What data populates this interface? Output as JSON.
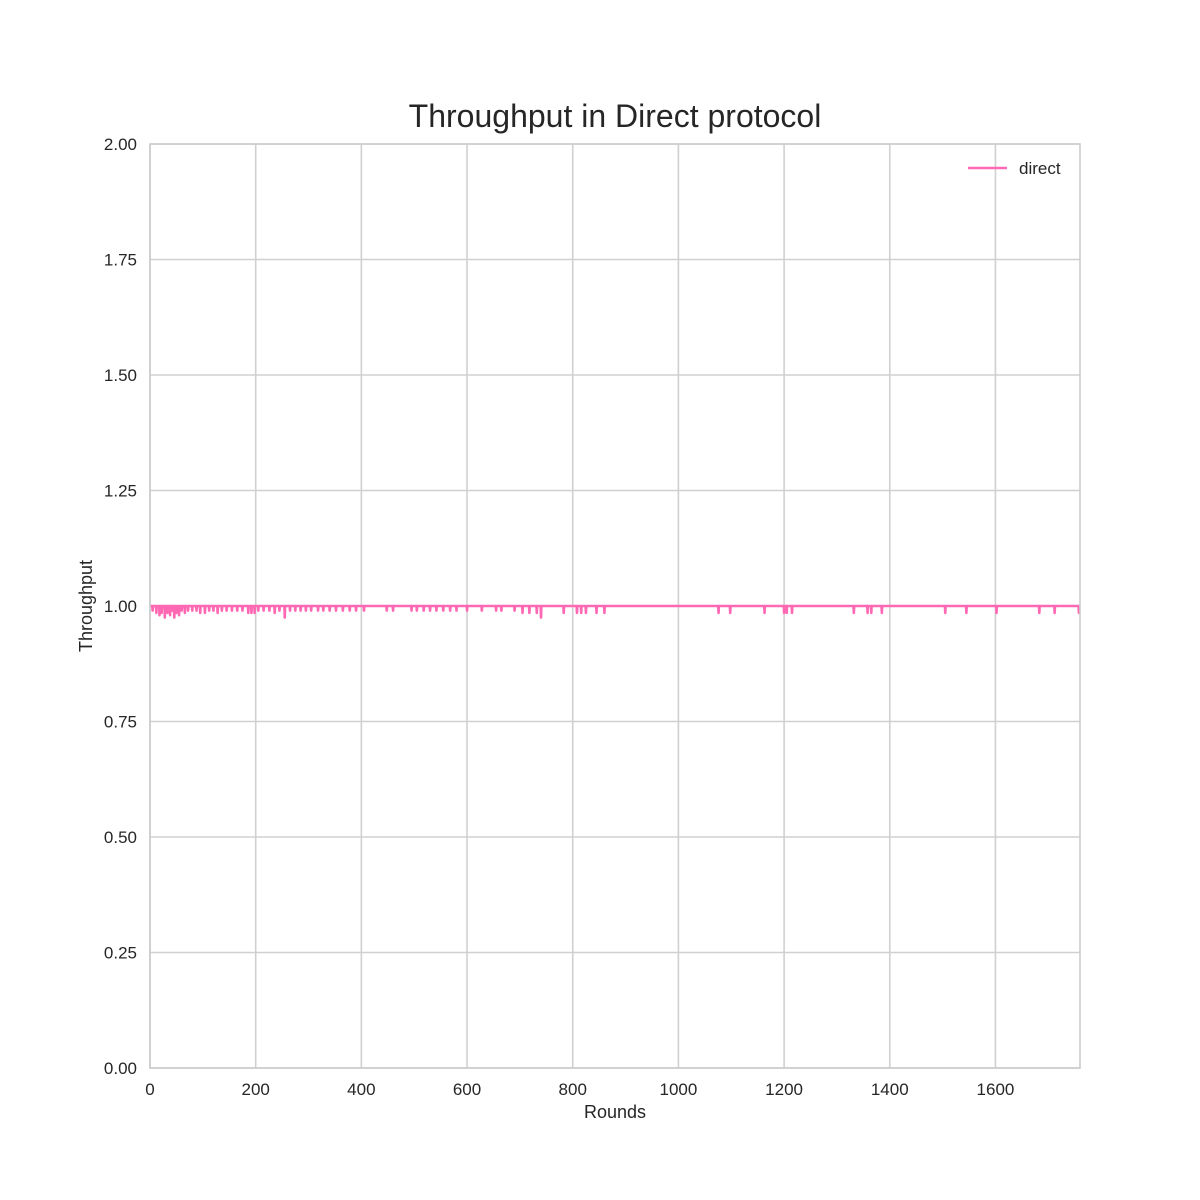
{
  "chart_data": {
    "type": "line",
    "title": "Throughput in Direct protocol",
    "xlabel": "Rounds",
    "ylabel": "Throughput",
    "xlim": [
      0,
      1760
    ],
    "ylim": [
      0,
      2.0
    ],
    "x_ticks": [
      0,
      200,
      400,
      600,
      800,
      1000,
      1200,
      1400,
      1600
    ],
    "x_tick_labels": [
      "0",
      "200",
      "400",
      "600",
      "800",
      "1000",
      "1200",
      "1400",
      "1600"
    ],
    "y_ticks": [
      0,
      0.25,
      0.5,
      0.75,
      1.0,
      1.25,
      1.5,
      1.75,
      2.0
    ],
    "y_tick_labels": [
      "0.00",
      "0.25",
      "0.50",
      "0.75",
      "1.00",
      "1.25",
      "1.50",
      "1.75",
      "2.00"
    ],
    "grid": true,
    "legend_position": "upper right",
    "series": [
      {
        "name": "direct",
        "color": "#ff69b4",
        "baseline": 1.0,
        "dips": [
          [
            5,
            0.99
          ],
          [
            12,
            0.985
          ],
          [
            18,
            0.98
          ],
          [
            22,
            0.985
          ],
          [
            28,
            0.975
          ],
          [
            33,
            0.985
          ],
          [
            38,
            0.98
          ],
          [
            42,
            0.99
          ],
          [
            46,
            0.975
          ],
          [
            50,
            0.985
          ],
          [
            55,
            0.98
          ],
          [
            60,
            0.99
          ],
          [
            66,
            0.985
          ],
          [
            72,
            0.99
          ],
          [
            80,
            0.99
          ],
          [
            88,
            0.99
          ],
          [
            95,
            0.985
          ],
          [
            104,
            0.985
          ],
          [
            112,
            0.99
          ],
          [
            120,
            0.99
          ],
          [
            128,
            0.985
          ],
          [
            136,
            0.99
          ],
          [
            145,
            0.99
          ],
          [
            155,
            0.99
          ],
          [
            165,
            0.99
          ],
          [
            175,
            0.99
          ],
          [
            186,
            0.985
          ],
          [
            192,
            0.985
          ],
          [
            198,
            0.985
          ],
          [
            205,
            0.99
          ],
          [
            215,
            0.99
          ],
          [
            226,
            0.99
          ],
          [
            236,
            0.985
          ],
          [
            245,
            0.99
          ],
          [
            255,
            0.975
          ],
          [
            265,
            0.99
          ],
          [
            275,
            0.99
          ],
          [
            285,
            0.99
          ],
          [
            295,
            0.99
          ],
          [
            305,
            0.99
          ],
          [
            318,
            0.99
          ],
          [
            328,
            0.99
          ],
          [
            340,
            0.99
          ],
          [
            352,
            0.99
          ],
          [
            365,
            0.99
          ],
          [
            378,
            0.99
          ],
          [
            390,
            0.99
          ],
          [
            405,
            0.99
          ],
          [
            448,
            0.99
          ],
          [
            460,
            0.99
          ],
          [
            495,
            0.99
          ],
          [
            505,
            0.99
          ],
          [
            518,
            0.99
          ],
          [
            530,
            0.99
          ],
          [
            542,
            0.99
          ],
          [
            555,
            0.99
          ],
          [
            568,
            0.99
          ],
          [
            580,
            0.99
          ],
          [
            600,
            0.99
          ],
          [
            628,
            0.99
          ],
          [
            655,
            0.99
          ],
          [
            665,
            0.99
          ],
          [
            690,
            0.99
          ],
          [
            705,
            0.985
          ],
          [
            718,
            0.985
          ],
          [
            732,
            0.985
          ],
          [
            740,
            0.975
          ],
          [
            783,
            0.985
          ],
          [
            808,
            0.985
          ],
          [
            816,
            0.985
          ],
          [
            825,
            0.985
          ],
          [
            845,
            0.985
          ],
          [
            860,
            0.985
          ],
          [
            1076,
            0.985
          ],
          [
            1098,
            0.985
          ],
          [
            1163,
            0.985
          ],
          [
            1200,
            0.985
          ],
          [
            1205,
            0.985
          ],
          [
            1215,
            0.985
          ],
          [
            1332,
            0.985
          ],
          [
            1358,
            0.985
          ],
          [
            1365,
            0.985
          ],
          [
            1385,
            0.985
          ],
          [
            1505,
            0.985
          ],
          [
            1545,
            0.985
          ],
          [
            1602,
            0.985
          ],
          [
            1683,
            0.985
          ],
          [
            1712,
            0.985
          ],
          [
            1758,
            0.985
          ]
        ]
      }
    ]
  }
}
